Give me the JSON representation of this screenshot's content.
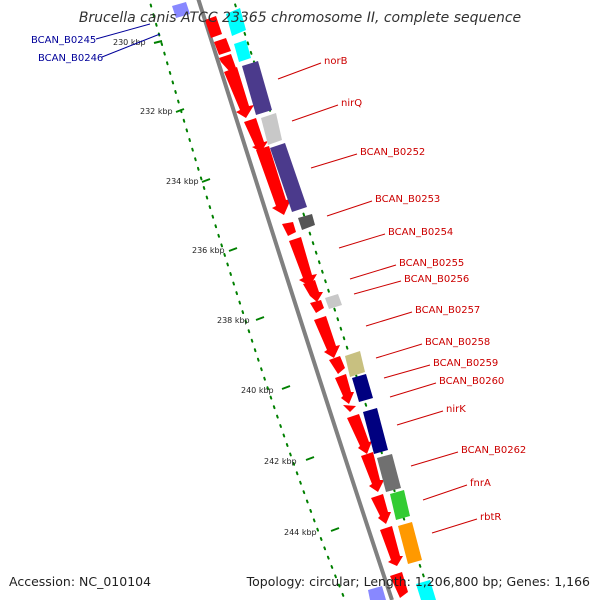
{
  "title": "Brucella canis ATCC 23365 chromosome II, complete sequence",
  "footer": {
    "accession": "Accession: NC_010104",
    "summary": "Topology: circular; Length: 1,206,800 bp; Genes: 1,166"
  },
  "colors": {
    "cds": "#ff0000",
    "label_red": "#cc0000",
    "label_blue": "#000099",
    "backbone": "#808080",
    "tick": "#008000"
  },
  "ticks": [
    {
      "label": "230 kbp",
      "kbp": 230
    },
    {
      "label": "232 kbp",
      "kbp": 232
    },
    {
      "label": "234 kbp",
      "kbp": 234
    },
    {
      "label": "236 kbp",
      "kbp": 236
    },
    {
      "label": "238 kbp",
      "kbp": 238
    },
    {
      "label": "240 kbp",
      "kbp": 240
    },
    {
      "label": "242 kbp",
      "kbp": 242
    },
    {
      "label": "244 kbp",
      "kbp": 244
    }
  ],
  "left_labels": [
    {
      "text": "BCAN_B0245"
    },
    {
      "text": "BCAN_B0246"
    }
  ],
  "gene_labels": [
    {
      "text": "norB"
    },
    {
      "text": "nirQ"
    },
    {
      "text": "BCAN_B0252"
    },
    {
      "text": "BCAN_B0253"
    },
    {
      "text": "BCAN_B0254"
    },
    {
      "text": "BCAN_B0255"
    },
    {
      "text": "BCAN_B0256"
    },
    {
      "text": "BCAN_B0257"
    },
    {
      "text": "BCAN_B0258"
    },
    {
      "text": "BCAN_B0259"
    },
    {
      "text": "BCAN_B0260"
    },
    {
      "text": "nirK"
    },
    {
      "text": "BCAN_B0262"
    },
    {
      "text": "fnrA"
    },
    {
      "text": "rbtR"
    }
  ],
  "features": [
    {
      "type": "cds",
      "color": "#ff0000"
    },
    {
      "type": "cog",
      "color": "#00ffff"
    },
    {
      "type": "cog",
      "color": "#4b3a8c"
    },
    {
      "type": "cog",
      "color": "#c8c8c8"
    },
    {
      "type": "cog",
      "color": "#555555"
    },
    {
      "type": "cog",
      "color": "#c8c080"
    },
    {
      "type": "cog",
      "color": "#000080"
    },
    {
      "type": "cog",
      "color": "#707070"
    },
    {
      "type": "cog",
      "color": "#33cc33"
    },
    {
      "type": "cog",
      "color": "#ff9900"
    }
  ]
}
